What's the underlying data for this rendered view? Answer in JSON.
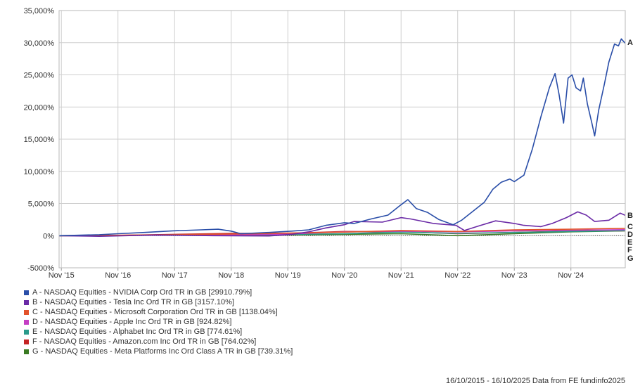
{
  "chart_data": {
    "type": "line",
    "y_ticks": [
      "35,000%",
      "30,000%",
      "25,000%",
      "20,000%",
      "15,000%",
      "10,000%",
      "5,000%",
      "0%",
      "-5000%"
    ],
    "y_tick_values": [
      35000,
      30000,
      25000,
      20000,
      15000,
      10000,
      5000,
      0,
      -5000
    ],
    "ylim": [
      -5000,
      35000
    ],
    "x_ticks": [
      "Nov '15",
      "Nov '16",
      "Nov '17",
      "Nov '18",
      "Nov '19",
      "Nov '20",
      "Nov '21",
      "Nov '22",
      "Nov '23",
      "Nov '24"
    ],
    "x_tick_values": [
      2015.83,
      2016.83,
      2017.83,
      2018.83,
      2019.83,
      2020.83,
      2021.83,
      2022.83,
      2023.83,
      2024.83
    ],
    "xlim": [
      2015.79,
      2025.79
    ],
    "grid": true,
    "legend_position": "bottom-left",
    "series": [
      {
        "letter": "A",
        "name": "A - NASDAQ Equities - NVIDIA Corp Ord TR in GB [29910.79%]",
        "color": "#2a4ea8",
        "points": [
          [
            2015.79,
            0
          ],
          [
            2016.0,
            40
          ],
          [
            2016.5,
            150
          ],
          [
            2016.83,
            300
          ],
          [
            2017.3,
            500
          ],
          [
            2017.8,
            750
          ],
          [
            2018.3,
            900
          ],
          [
            2018.6,
            1000
          ],
          [
            2018.83,
            700
          ],
          [
            2019.0,
            300
          ],
          [
            2019.5,
            500
          ],
          [
            2019.9,
            700
          ],
          [
            2020.2,
            900
          ],
          [
            2020.5,
            1600
          ],
          [
            2020.83,
            2000
          ],
          [
            2021.0,
            1900
          ],
          [
            2021.3,
            2600
          ],
          [
            2021.6,
            3200
          ],
          [
            2021.83,
            4800
          ],
          [
            2021.95,
            5600
          ],
          [
            2022.1,
            4200
          ],
          [
            2022.3,
            3600
          ],
          [
            2022.5,
            2500
          ],
          [
            2022.75,
            1700
          ],
          [
            2022.9,
            2400
          ],
          [
            2023.1,
            3800
          ],
          [
            2023.3,
            5200
          ],
          [
            2023.45,
            7200
          ],
          [
            2023.6,
            8300
          ],
          [
            2023.75,
            8800
          ],
          [
            2023.83,
            8400
          ],
          [
            2024.0,
            9400
          ],
          [
            2024.15,
            13500
          ],
          [
            2024.3,
            18500
          ],
          [
            2024.45,
            23000
          ],
          [
            2024.55,
            25200
          ],
          [
            2024.62,
            22000
          ],
          [
            2024.7,
            17500
          ],
          [
            2024.78,
            24500
          ],
          [
            2024.85,
            25000
          ],
          [
            2024.92,
            23000
          ],
          [
            2025.0,
            22500
          ],
          [
            2025.05,
            24500
          ],
          [
            2025.12,
            20500
          ],
          [
            2025.2,
            17500
          ],
          [
            2025.25,
            15500
          ],
          [
            2025.32,
            19500
          ],
          [
            2025.42,
            23500
          ],
          [
            2025.5,
            27000
          ],
          [
            2025.6,
            29800
          ],
          [
            2025.67,
            29500
          ],
          [
            2025.72,
            30600
          ],
          [
            2025.79,
            29910
          ]
        ]
      },
      {
        "letter": "B",
        "name": "B - NASDAQ Equities - Tesla Inc Ord TR in GB [3157.10%]",
        "color": "#6a2aa6",
        "points": [
          [
            2015.79,
            0
          ],
          [
            2016.5,
            -100
          ],
          [
            2017.5,
            100
          ],
          [
            2018.5,
            0
          ],
          [
            2019.5,
            -50
          ],
          [
            2019.9,
            200
          ],
          [
            2020.2,
            600
          ],
          [
            2020.5,
            1200
          ],
          [
            2020.83,
            1700
          ],
          [
            2021.0,
            2200
          ],
          [
            2021.5,
            2100
          ],
          [
            2021.83,
            2800
          ],
          [
            2022.0,
            2600
          ],
          [
            2022.4,
            1900
          ],
          [
            2022.8,
            1600
          ],
          [
            2022.95,
            800
          ],
          [
            2023.2,
            1500
          ],
          [
            2023.5,
            2300
          ],
          [
            2023.83,
            1900
          ],
          [
            2024.0,
            1600
          ],
          [
            2024.3,
            1400
          ],
          [
            2024.5,
            1900
          ],
          [
            2024.75,
            2800
          ],
          [
            2024.95,
            3700
          ],
          [
            2025.1,
            3200
          ],
          [
            2025.25,
            2200
          ],
          [
            2025.5,
            2400
          ],
          [
            2025.7,
            3500
          ],
          [
            2025.79,
            3157
          ]
        ]
      },
      {
        "letter": "C",
        "name": "C - NASDAQ Equities - Microsoft Corporation Ord TR in GB [1138.04%]",
        "color": "#e2522b",
        "points": [
          [
            2015.79,
            0
          ],
          [
            2016.83,
            60
          ],
          [
            2017.83,
            150
          ],
          [
            2018.83,
            250
          ],
          [
            2019.83,
            400
          ],
          [
            2020.83,
            550
          ],
          [
            2021.83,
            800
          ],
          [
            2022.83,
            650
          ],
          [
            2023.83,
            900
          ],
          [
            2024.83,
            1000
          ],
          [
            2025.79,
            1138
          ]
        ]
      },
      {
        "letter": "D",
        "name": "D - NASDAQ Equities - Apple Inc Ord TR in GB [924.82%]",
        "color": "#c43ec4",
        "points": [
          [
            2015.79,
            0
          ],
          [
            2016.83,
            20
          ],
          [
            2017.83,
            100
          ],
          [
            2018.83,
            120
          ],
          [
            2019.83,
            250
          ],
          [
            2020.83,
            600
          ],
          [
            2021.83,
            700
          ],
          [
            2022.83,
            600
          ],
          [
            2023.83,
            750
          ],
          [
            2024.83,
            850
          ],
          [
            2025.79,
            925
          ]
        ]
      },
      {
        "letter": "E",
        "name": "E - NASDAQ Equities - Alphabet Inc Ord TR in GB [774.61%]",
        "color": "#2a9a8a",
        "points": [
          [
            2015.79,
            0
          ],
          [
            2016.83,
            40
          ],
          [
            2017.83,
            120
          ],
          [
            2018.83,
            150
          ],
          [
            2019.83,
            200
          ],
          [
            2020.83,
            300
          ],
          [
            2021.83,
            550
          ],
          [
            2022.83,
            350
          ],
          [
            2023.83,
            500
          ],
          [
            2024.83,
            650
          ],
          [
            2025.79,
            775
          ]
        ]
      },
      {
        "letter": "F",
        "name": "F - NASDAQ Equities - Amazon.com Inc Ord TR in GB [764.02%]",
        "color": "#c42424",
        "points": [
          [
            2015.79,
            0
          ],
          [
            2016.83,
            50
          ],
          [
            2017.83,
            200
          ],
          [
            2018.83,
            350
          ],
          [
            2019.83,
            350
          ],
          [
            2020.83,
            650
          ],
          [
            2021.83,
            600
          ],
          [
            2022.83,
            300
          ],
          [
            2023.83,
            500
          ],
          [
            2024.83,
            700
          ],
          [
            2025.79,
            764
          ]
        ]
      },
      {
        "letter": "G",
        "name": "G - NASDAQ Equities - Meta Platforms Inc Ord Class A TR in GB [739.31%]",
        "color": "#3a7a22",
        "points": [
          [
            2015.79,
            0
          ],
          [
            2016.83,
            30
          ],
          [
            2017.83,
            100
          ],
          [
            2018.83,
            40
          ],
          [
            2019.83,
            120
          ],
          [
            2020.83,
            200
          ],
          [
            2021.83,
            300
          ],
          [
            2022.83,
            0
          ],
          [
            2023.83,
            300
          ],
          [
            2024.83,
            600
          ],
          [
            2025.79,
            739
          ]
        ]
      }
    ]
  },
  "footer_text": "16/10/2015 - 16/10/2025 Data from FE fundinfo2025"
}
